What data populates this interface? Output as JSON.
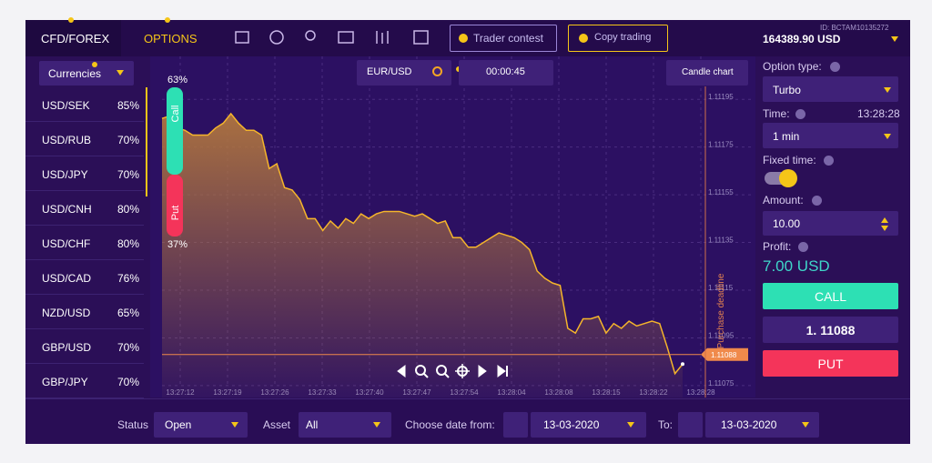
{
  "top_bar": {
    "tabs": [
      "CFD/FOREX",
      "OPTIONS"
    ],
    "buttons": [
      "Trader contest",
      "Copy trading"
    ],
    "account_id": "ID: BCTAM10135272",
    "balance": "164389.90 USD"
  },
  "sidebar": {
    "filter": "Currencies",
    "assets": [
      {
        "pair": "USD/SEK",
        "payout": "85%"
      },
      {
        "pair": "USD/RUB",
        "payout": "70%"
      },
      {
        "pair": "USD/JPY",
        "payout": "70%"
      },
      {
        "pair": "USD/CNH",
        "payout": "80%"
      },
      {
        "pair": "USD/CHF",
        "payout": "80%"
      },
      {
        "pair": "USD/CAD",
        "payout": "76%"
      },
      {
        "pair": "NZD/USD",
        "payout": "65%"
      },
      {
        "pair": "GBP/USD",
        "payout": "70%"
      },
      {
        "pair": "GBP/JPY",
        "payout": "70%"
      }
    ]
  },
  "chart": {
    "symbol": "EUR/USD",
    "timer": "00:00:45",
    "view_button": "Candle chart",
    "call_label": "Call",
    "call_share": "63%",
    "put_label": "Put",
    "put_share": "37%",
    "deadline_label": "Purchase deadline",
    "current_price": 1.11088,
    "xticks": [
      "13:27:12",
      "13:27:19",
      "13:27:26",
      "13:27:33",
      "13:27:40",
      "13:27:47",
      "13:27:54",
      "13:28:04",
      "13:28:08",
      "13:28:15",
      "13:28:22",
      "13:28:28"
    ],
    "ylim": [
      1.1107,
      1.11213
    ],
    "yticks": [
      1.11195,
      1.11175,
      1.11155,
      1.11135,
      1.11115,
      1.11095,
      1.11075
    ],
    "values": [
      1.11187,
      1.11188,
      1.11183,
      1.11182,
      1.1118,
      1.1118,
      1.1118,
      1.11183,
      1.11185,
      1.11189,
      1.11185,
      1.11182,
      1.11182,
      1.1118,
      1.11166,
      1.11168,
      1.11158,
      1.11157,
      1.11153,
      1.11145,
      1.11145,
      1.1114,
      1.11144,
      1.11141,
      1.11145,
      1.11143,
      1.11147,
      1.11145,
      1.11147,
      1.11148,
      1.11148,
      1.11148,
      1.11147,
      1.11146,
      1.11147,
      1.11145,
      1.11143,
      1.11144,
      1.11137,
      1.11137,
      1.11133,
      1.11133,
      1.11135,
      1.11137,
      1.11139,
      1.11138,
      1.11137,
      1.11135,
      1.11132,
      1.11123,
      1.1112,
      1.11118,
      1.11117,
      1.11099,
      1.11097,
      1.11103,
      1.11103,
      1.11104,
      1.11097,
      1.11101,
      1.11099,
      1.11102,
      1.111,
      1.11101,
      1.11102,
      1.11101,
      1.11091,
      1.1108,
      1.11084
    ]
  },
  "trade_panel": {
    "option_type_label": "Option type:",
    "option_type": "Turbo",
    "time_label": "Time:",
    "clock": "13:28:28",
    "duration": "1 min",
    "fixed_time_label": "Fixed time:",
    "amount_label": "Amount:",
    "amount": "10.00",
    "profit_label": "Profit:",
    "profit": "7.00 USD",
    "call_button": "CALL",
    "price": "1. 11088",
    "put_button": "PUT"
  },
  "filters": {
    "status_label": "Status",
    "status": "Open",
    "asset_label": "Asset",
    "asset": "All",
    "date_from_label": "Choose date from:",
    "date_from": "13-03-2020",
    "date_to_label": "To:",
    "date_to": "13-03-2020"
  }
}
